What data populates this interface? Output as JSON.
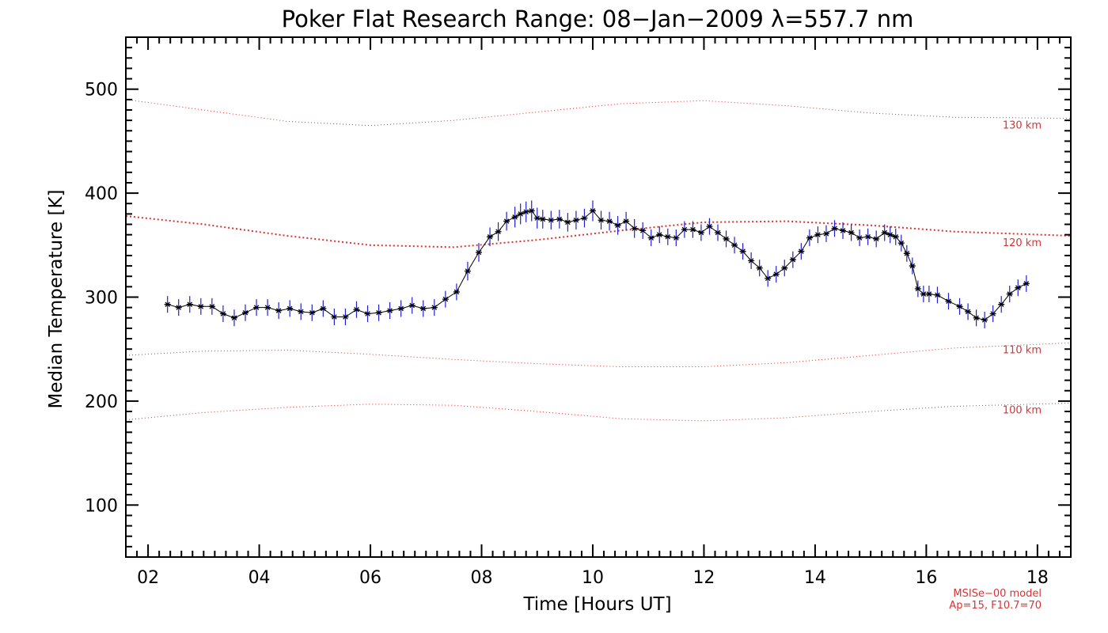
{
  "chart_data": {
    "type": "line",
    "title": "Poker Flat Research Range: 08−Jan−2009 λ=557.7 nm",
    "xlabel": "Time [Hours UT]",
    "ylabel": "Median Temperature [K]",
    "xlim": [
      1.6,
      18.6
    ],
    "ylim": [
      50,
      550
    ],
    "x_ticks": [
      2,
      4,
      6,
      8,
      10,
      12,
      14,
      16,
      18
    ],
    "x_tick_labels": [
      "02",
      "04",
      "06",
      "08",
      "10",
      "12",
      "14",
      "16",
      "18"
    ],
    "y_ticks": [
      100,
      200,
      300,
      400,
      500
    ],
    "y_tick_labels": [
      "100",
      "200",
      "300",
      "400",
      "500"
    ],
    "colors": {
      "data_line": "#000000",
      "error_bar": "#2020d0",
      "model": "#e03030"
    },
    "series": [
      {
        "name": "Median Temperature",
        "x": [
          2.35,
          2.55,
          2.75,
          2.95,
          3.15,
          3.35,
          3.55,
          3.75,
          3.95,
          4.15,
          4.35,
          4.55,
          4.75,
          4.95,
          5.15,
          5.35,
          5.55,
          5.75,
          5.95,
          6.15,
          6.35,
          6.55,
          6.75,
          6.95,
          7.15,
          7.35,
          7.55,
          7.75,
          7.95,
          8.15,
          8.3,
          8.45,
          8.6,
          8.7,
          8.8,
          8.9,
          9.0,
          9.1,
          9.25,
          9.4,
          9.55,
          9.7,
          9.85,
          10.0,
          10.15,
          10.3,
          10.45,
          10.6,
          10.75,
          10.9,
          11.05,
          11.2,
          11.35,
          11.5,
          11.65,
          11.8,
          11.95,
          12.1,
          12.25,
          12.4,
          12.55,
          12.7,
          12.85,
          13.0,
          13.15,
          13.3,
          13.45,
          13.6,
          13.75,
          13.9,
          14.05,
          14.2,
          14.35,
          14.5,
          14.65,
          14.8,
          14.95,
          15.1,
          15.25,
          15.35,
          15.45,
          15.55,
          15.65,
          15.75,
          15.85,
          15.95,
          16.05,
          16.2,
          16.4,
          16.6,
          16.75,
          16.9,
          17.05,
          17.2,
          17.35,
          17.5,
          17.65,
          17.8
        ],
        "values": [
          293,
          290,
          293,
          291,
          291,
          284,
          280,
          285,
          290,
          290,
          287,
          289,
          286,
          285,
          289,
          281,
          281,
          288,
          284,
          285,
          287,
          289,
          292,
          289,
          290,
          298,
          305,
          325,
          343,
          358,
          363,
          373,
          377,
          380,
          382,
          383,
          376,
          375,
          374,
          375,
          372,
          374,
          376,
          383,
          374,
          373,
          369,
          373,
          366,
          364,
          357,
          360,
          358,
          357,
          365,
          365,
          362,
          368,
          362,
          356,
          350,
          344,
          335,
          328,
          318,
          322,
          328,
          336,
          344,
          357,
          360,
          361,
          366,
          364,
          362,
          357,
          358,
          356,
          362,
          360,
          358,
          352,
          342,
          330,
          308,
          303,
          303,
          302,
          296,
          291,
          286,
          280,
          278,
          284,
          293,
          303,
          309,
          313
        ],
        "error": [
          8,
          8,
          8,
          8,
          8,
          8,
          8,
          8,
          8,
          8,
          8,
          8,
          8,
          8,
          8,
          8,
          8,
          8,
          8,
          8,
          8,
          8,
          8,
          8,
          8,
          8,
          8,
          9,
          9,
          9,
          9,
          9,
          10,
          10,
          10,
          10,
          10,
          9,
          9,
          9,
          9,
          9,
          9,
          10,
          9,
          9,
          9,
          9,
          9,
          8,
          8,
          8,
          8,
          8,
          8,
          8,
          8,
          8,
          8,
          8,
          8,
          8,
          8,
          8,
          8,
          8,
          8,
          8,
          8,
          8,
          8,
          8,
          8,
          8,
          8,
          8,
          8,
          8,
          8,
          8,
          8,
          8,
          8,
          8,
          8,
          8,
          8,
          8,
          8,
          8,
          8,
          8,
          8,
          8,
          8,
          8,
          8,
          8
        ]
      }
    ],
    "model_curves": [
      {
        "name": "130 km",
        "label": "130 km",
        "x": [
          1.6,
          3,
          4.5,
          6,
          7.5,
          9,
          10.5,
          12,
          13.5,
          15,
          16.5,
          18.6
        ],
        "values": [
          490,
          480,
          469,
          465,
          470,
          478,
          486,
          489,
          484,
          477,
          473,
          472
        ]
      },
      {
        "name": "120 km",
        "label": "120 km",
        "x": [
          1.6,
          3,
          4.5,
          6,
          7.5,
          9,
          10.5,
          12,
          13.5,
          15,
          16.5,
          18.6
        ],
        "values": [
          378,
          370,
          359,
          350,
          348,
          355,
          364,
          372,
          373,
          369,
          363,
          359
        ]
      },
      {
        "name": "110 km",
        "label": "110 km",
        "x": [
          1.6,
          3,
          4.5,
          6,
          7.5,
          9,
          10.5,
          12,
          13.5,
          15,
          16.5,
          18.6
        ],
        "values": [
          244,
          248,
          249,
          245,
          240,
          236,
          233,
          233,
          237,
          244,
          251,
          256
        ]
      },
      {
        "name": "100 km",
        "label": "100 km",
        "x": [
          1.6,
          3,
          4.5,
          6,
          7.5,
          9,
          10.5,
          12,
          13.5,
          15,
          16.5,
          18.6
        ],
        "values": [
          182,
          189,
          194,
          197,
          196,
          190,
          183,
          181,
          184,
          190,
          195,
          198
        ]
      }
    ],
    "annotations": [
      "MSISe−00 model",
      "Ap=15, F10.7=70"
    ]
  }
}
